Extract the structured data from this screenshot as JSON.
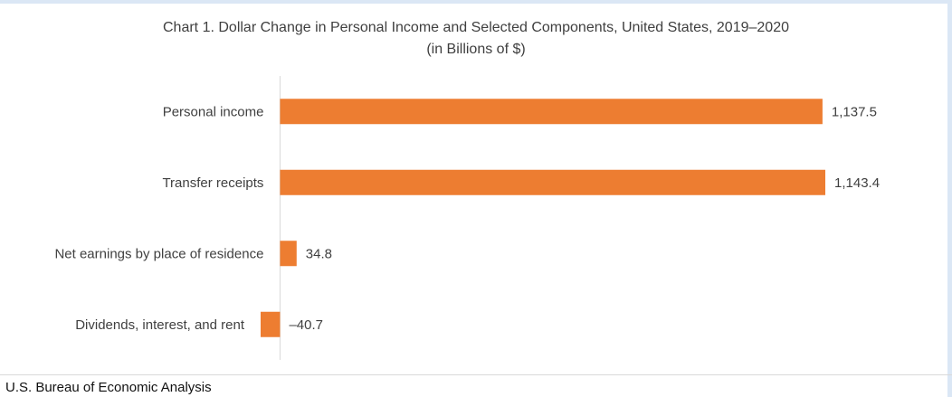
{
  "chart_data": {
    "type": "bar",
    "orientation": "horizontal",
    "title": "Chart 1. Dollar Change in Personal Income and Selected Components, United States, 2019–2020",
    "subtitle": "(in Billions of $)",
    "categories": [
      "Personal income",
      "Transfer receipts",
      "Net earnings by place of residence",
      "Dividends, interest, and rent"
    ],
    "values": [
      1137.5,
      1143.4,
      34.8,
      -40.7
    ],
    "data_labels": [
      "1,137.5",
      "1,143.4",
      "34.8",
      "–40.7"
    ],
    "xlabel": "",
    "ylabel": "",
    "xlim": [
      -40.7,
      1143.4
    ],
    "grid": false,
    "legend": "none",
    "bar_color": "#ed7d31"
  },
  "footer": {
    "source": "U.S. Bureau of Economic Analysis"
  }
}
